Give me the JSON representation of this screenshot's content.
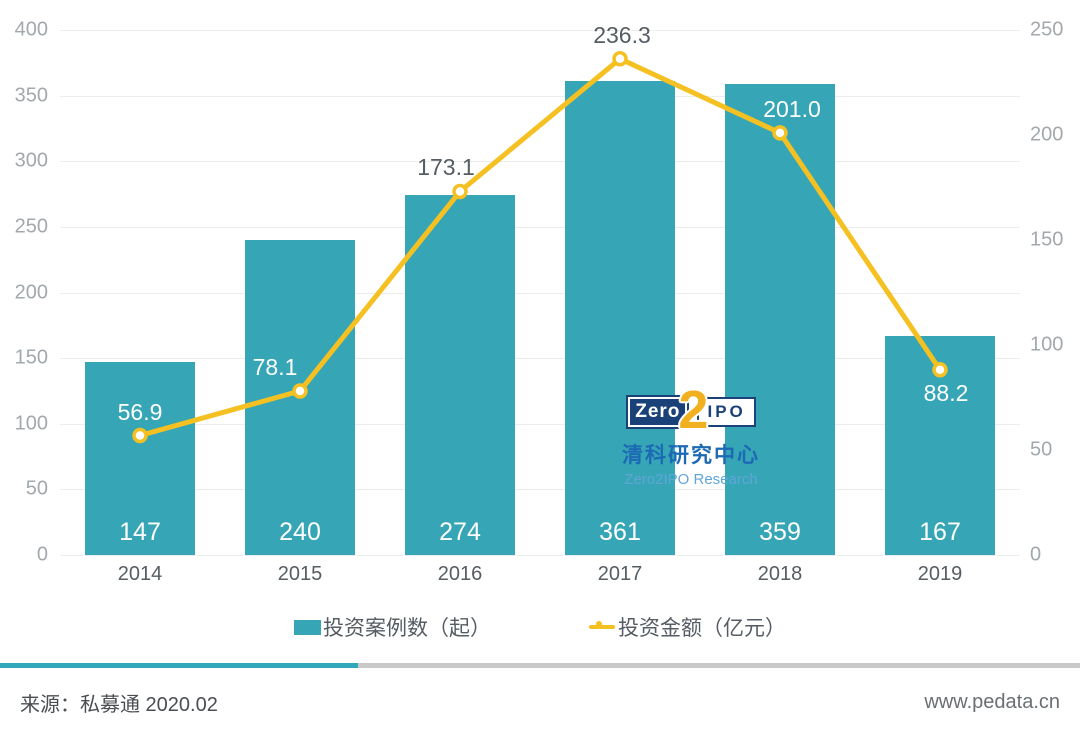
{
  "chart_data": {
    "type": "bar+line combo",
    "categories": [
      "2014",
      "2015",
      "2016",
      "2017",
      "2018",
      "2019"
    ],
    "series": [
      {
        "name": "投资案例数（起）",
        "type": "bar",
        "axis": "left",
        "values": [
          147,
          240,
          274,
          361,
          359,
          167
        ]
      },
      {
        "name": "投资金额（亿元）",
        "type": "line",
        "axis": "right",
        "values": [
          56.9,
          78.1,
          173.1,
          236.3,
          201.0,
          88.2
        ],
        "labels": [
          "56.9",
          "78.1",
          "173.1",
          "236.3",
          "201.0",
          "88.2"
        ],
        "label_dx": [
          0,
          -25,
          -14,
          2,
          12,
          6
        ],
        "label_placement": [
          "above",
          "above",
          "above",
          "above",
          "above",
          "below"
        ]
      }
    ],
    "left_axis": {
      "min": 0,
      "max": 400,
      "step": 50,
      "tick_values": [
        400,
        350,
        300,
        250,
        200,
        150,
        100,
        50,
        0
      ]
    },
    "right_axis": {
      "min": 0,
      "max": 250,
      "step": 50,
      "tick_values": [
        250,
        200,
        150,
        100,
        50,
        0
      ]
    },
    "grid": true,
    "legend_position": "bottom"
  },
  "legend": {
    "bar_label": "投资案例数（起）",
    "line_label": "投资金额（亿元）"
  },
  "watermark": {
    "zero": "Zero",
    "two": "2",
    "ipo": "IPO",
    "cn_name": "清科研究中心",
    "en_name": "Zero2IPO Research"
  },
  "footer": {
    "source": "来源：私募通 2020.02",
    "website": "www.pedata.cn"
  },
  "colors": {
    "bar": "#36a6b6",
    "line": "#f5c021",
    "point_label_dark": "#565c63",
    "point_label_light": "#ffffff",
    "grid": "#ececec",
    "axis_text": "#a3a8ad",
    "logo_navy": "#1a4178",
    "logo_blue": "#1c69b4",
    "logo_light_blue": "#60a5d8",
    "logo_gold": "#f0b01f",
    "divider_teal": "#2fa9b9",
    "divider_gray": "#c9c9c9"
  }
}
